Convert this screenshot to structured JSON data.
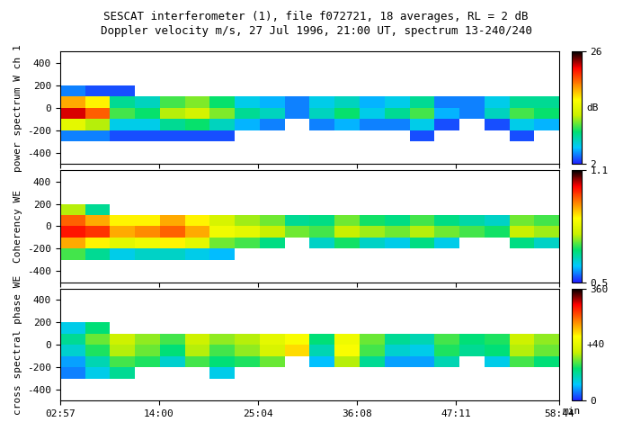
{
  "title": "SESCAT interferometer (1), file f072721, 18 averages, RL = 2 dB",
  "subtitle": "Doppler velocity m/s, 27 Jul 1996, 21:00 UT, spectrum 13-240/240",
  "chart_data": [
    {
      "type": "heatmap",
      "y_label": "power spectrum W ch 1",
      "tick_labels": "y",
      "x_edges": [
        2.95,
        5.74,
        8.53,
        11.32,
        14.11,
        16.9,
        19.68,
        22.47,
        25.26,
        28.05,
        30.84,
        33.63,
        36.42,
        39.21,
        42.0,
        44.79,
        47.58,
        50.37,
        53.15,
        55.94,
        58.73
      ],
      "y_edges": [
        -500,
        -400,
        -300,
        -200,
        -100,
        0,
        100,
        200,
        300,
        400,
        500
      ],
      "cells": [
        [
          null,
          null,
          null,
          null,
          null,
          null,
          null,
          null,
          null,
          null,
          null,
          null,
          null,
          null,
          null,
          null,
          null,
          null,
          null,
          null
        ],
        [
          null,
          null,
          null,
          null,
          null,
          null,
          null,
          null,
          null,
          null,
          null,
          null,
          null,
          null,
          null,
          null,
          null,
          null,
          null,
          null
        ],
        [
          4,
          4,
          3,
          3,
          3,
          3,
          3,
          null,
          null,
          null,
          null,
          null,
          null,
          null,
          3,
          null,
          null,
          null,
          3,
          null
        ],
        [
          14,
          12,
          6,
          6,
          8,
          9,
          7,
          5,
          4,
          null,
          4,
          5,
          4,
          4,
          6,
          3,
          null,
          3,
          6,
          5
        ],
        [
          23,
          20,
          10,
          9,
          12,
          13,
          11,
          8,
          7,
          4,
          7,
          9,
          6,
          8,
          10,
          5,
          4,
          7,
          10,
          9
        ],
        [
          18,
          16,
          8,
          7,
          10,
          11,
          9,
          6,
          5,
          4,
          6,
          7,
          5,
          6,
          8,
          4,
          4,
          6,
          8,
          8
        ],
        [
          4,
          3,
          3,
          null,
          null,
          null,
          null,
          null,
          null,
          null,
          null,
          null,
          null,
          null,
          null,
          null,
          null,
          null,
          null,
          null
        ],
        [
          null,
          null,
          null,
          null,
          null,
          null,
          null,
          null,
          null,
          null,
          null,
          null,
          null,
          null,
          null,
          null,
          null,
          null,
          null,
          null
        ],
        [
          null,
          null,
          null,
          null,
          null,
          null,
          null,
          null,
          null,
          null,
          null,
          null,
          null,
          null,
          null,
          null,
          null,
          null,
          null,
          null
        ],
        [
          null,
          null,
          null,
          null,
          null,
          null,
          null,
          null,
          null,
          null,
          null,
          null,
          null,
          null,
          null,
          null,
          null,
          null,
          null,
          null
        ]
      ],
      "xlim": [
        2.95,
        58.73
      ],
      "ylim": [
        -500,
        500
      ],
      "xticks": [
        {
          "value": 2.95,
          "label": "02:57"
        },
        {
          "value": 14.0,
          "label": "14:00"
        },
        {
          "value": 25.07,
          "label": "25:04"
        },
        {
          "value": 36.13,
          "label": "36:08"
        },
        {
          "value": 47.18,
          "label": "47:11"
        },
        {
          "value": 58.73,
          "label": "58:44"
        }
      ],
      "yticks": [
        -400,
        -200,
        0,
        200,
        400
      ],
      "colorbar": {
        "range": [
          2,
          26
        ],
        "ticks": [
          2,
          26
        ],
        "label": "dB"
      }
    },
    {
      "type": "heatmap",
      "y_label": "Coherency WE",
      "tick_labels": "y",
      "x_edges": [
        2.95,
        5.74,
        8.53,
        11.32,
        14.11,
        16.9,
        19.68,
        22.47,
        25.26,
        28.05,
        30.84,
        33.63,
        36.42,
        39.21,
        42.0,
        44.79,
        47.58,
        50.37,
        53.15,
        55.94,
        58.73
      ],
      "y_edges": [
        -500,
        -400,
        -300,
        -200,
        -100,
        0,
        100,
        200,
        300,
        400,
        500
      ],
      "cells": [
        [
          null,
          null,
          null,
          null,
          null,
          null,
          null,
          null,
          null,
          null,
          null,
          null,
          null,
          null,
          null,
          null,
          null,
          null,
          null,
          null
        ],
        [
          null,
          null,
          null,
          null,
          null,
          null,
          null,
          null,
          null,
          null,
          null,
          null,
          null,
          null,
          null,
          null,
          null,
          null,
          null,
          null
        ],
        [
          0.7,
          0.65,
          0.6,
          0.62,
          0.62,
          0.6,
          0.58,
          null,
          null,
          null,
          null,
          null,
          null,
          null,
          null,
          null,
          null,
          null,
          null,
          null
        ],
        [
          0.9,
          0.85,
          0.8,
          0.82,
          0.85,
          0.8,
          0.72,
          0.7,
          0.66,
          null,
          0.62,
          0.68,
          0.62,
          0.6,
          0.66,
          0.6,
          null,
          null,
          0.66,
          0.62
        ],
        [
          1.0,
          0.98,
          0.9,
          0.92,
          0.95,
          0.9,
          0.82,
          0.8,
          0.76,
          0.72,
          0.7,
          0.76,
          0.74,
          0.72,
          0.75,
          0.72,
          0.7,
          0.68,
          0.76,
          0.74
        ],
        [
          0.95,
          0.9,
          0.85,
          0.85,
          0.9,
          0.85,
          0.78,
          0.74,
          0.72,
          0.65,
          0.66,
          0.72,
          0.68,
          0.66,
          0.7,
          0.66,
          0.64,
          0.62,
          0.72,
          0.7
        ],
        [
          0.75,
          0.65,
          null,
          null,
          null,
          null,
          null,
          null,
          null,
          null,
          null,
          null,
          null,
          null,
          null,
          null,
          null,
          null,
          null,
          null
        ],
        [
          null,
          null,
          null,
          null,
          null,
          null,
          null,
          null,
          null,
          null,
          null,
          null,
          null,
          null,
          null,
          null,
          null,
          null,
          null,
          null
        ],
        [
          null,
          null,
          null,
          null,
          null,
          null,
          null,
          null,
          null,
          null,
          null,
          null,
          null,
          null,
          null,
          null,
          null,
          null,
          null,
          null
        ],
        [
          null,
          null,
          null,
          null,
          null,
          null,
          null,
          null,
          null,
          null,
          null,
          null,
          null,
          null,
          null,
          null,
          null,
          null,
          null,
          null
        ]
      ],
      "xlim": [
        2.95,
        58.73
      ],
      "ylim": [
        -500,
        500
      ],
      "xticks": [
        {
          "value": 2.95,
          "label": "02:57"
        },
        {
          "value": 14.0,
          "label": "14:00"
        },
        {
          "value": 25.07,
          "label": "25:04"
        },
        {
          "value": 36.13,
          "label": "36:08"
        },
        {
          "value": 47.18,
          "label": "47:11"
        },
        {
          "value": 58.73,
          "label": "58:44"
        }
      ],
      "yticks": [
        -400,
        -200,
        0,
        200,
        400
      ],
      "colorbar": {
        "range": [
          0.5,
          1.1
        ],
        "ticks": [
          0.5,
          1.1
        ]
      }
    },
    {
      "type": "heatmap",
      "y_label": "cross spectral phase WE",
      "x_label": "min",
      "x_edges": [
        2.95,
        5.74,
        8.53,
        11.32,
        14.11,
        16.9,
        19.68,
        22.47,
        25.26,
        28.05,
        30.84,
        33.63,
        36.42,
        39.21,
        42.0,
        44.79,
        47.58,
        50.37,
        53.15,
        55.94,
        58.73
      ],
      "y_edges": [
        -500,
        -400,
        -300,
        -200,
        -100,
        0,
        100,
        200,
        300,
        400,
        500
      ],
      "cells": [
        [
          null,
          null,
          null,
          null,
          null,
          null,
          null,
          null,
          null,
          null,
          null,
          null,
          null,
          null,
          null,
          null,
          null,
          null,
          null,
          null
        ],
        [
          null,
          null,
          null,
          null,
          null,
          null,
          null,
          null,
          null,
          null,
          null,
          null,
          null,
          null,
          null,
          null,
          null,
          null,
          null,
          null
        ],
        [
          30,
          60,
          90,
          null,
          null,
          null,
          60,
          null,
          null,
          null,
          null,
          null,
          null,
          null,
          null,
          null,
          null,
          null,
          null,
          null
        ],
        [
          40,
          80,
          120,
          110,
          70,
          120,
          100,
          110,
          130,
          null,
          50,
          150,
          90,
          40,
          40,
          80,
          null,
          60,
          120,
          100
        ],
        [
          70,
          110,
          150,
          130,
          100,
          150,
          120,
          140,
          170,
          220,
          80,
          200,
          120,
          70,
          60,
          110,
          90,
          100,
          150,
          130
        ],
        [
          90,
          130,
          160,
          140,
          120,
          160,
          140,
          150,
          180,
          200,
          100,
          190,
          130,
          90,
          80,
          120,
          100,
          110,
          160,
          140
        ],
        [
          60,
          100,
          null,
          null,
          null,
          null,
          null,
          null,
          null,
          null,
          null,
          null,
          null,
          null,
          null,
          null,
          null,
          null,
          null,
          null
        ],
        [
          null,
          null,
          null,
          null,
          null,
          null,
          null,
          null,
          null,
          null,
          null,
          null,
          null,
          null,
          null,
          null,
          null,
          null,
          null,
          null
        ],
        [
          null,
          null,
          null,
          null,
          null,
          null,
          null,
          null,
          null,
          null,
          null,
          null,
          null,
          null,
          null,
          null,
          null,
          null,
          null,
          null
        ],
        [
          null,
          null,
          null,
          null,
          null,
          null,
          null,
          null,
          null,
          null,
          null,
          null,
          null,
          null,
          null,
          null,
          null,
          null,
          null,
          null
        ]
      ],
      "xlim": [
        2.95,
        58.73
      ],
      "ylim": [
        -500,
        500
      ],
      "xticks": [
        {
          "value": 2.95,
          "label": "02:57"
        },
        {
          "value": 14.0,
          "label": "14:00"
        },
        {
          "value": 25.07,
          "label": "25:04"
        },
        {
          "value": 36.13,
          "label": "36:08"
        },
        {
          "value": 47.18,
          "label": "47:11"
        },
        {
          "value": 58.73,
          "label": "58:44"
        }
      ],
      "yticks": [
        -400,
        -200,
        0,
        200,
        400
      ],
      "colorbar": {
        "range": [
          0,
          360
        ],
        "ticks": [
          0,
          360
        ],
        "label": "+40"
      }
    }
  ]
}
